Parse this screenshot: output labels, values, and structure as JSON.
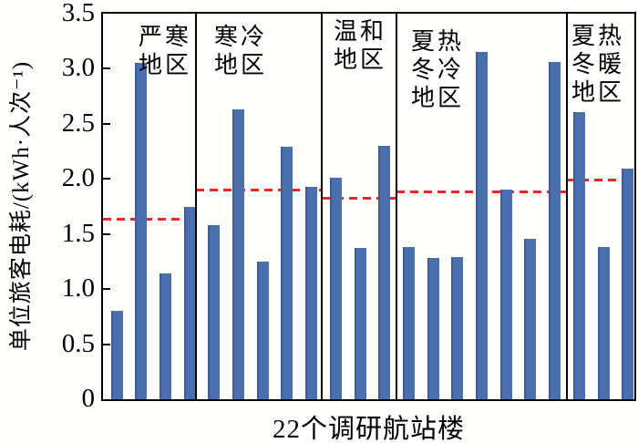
{
  "chart_data": {
    "type": "bar",
    "title": "",
    "xlabel": "22个调研航站楼",
    "ylabel": "单位旅客电耗/(kWh·人次⁻¹)",
    "ylim": [
      0,
      3.5
    ],
    "grid": false,
    "legend": "none",
    "yticks": [
      {
        "value": 0,
        "label": "0"
      },
      {
        "value": 0.5,
        "label": "0.5"
      },
      {
        "value": 1.0,
        "label": "1.0"
      },
      {
        "value": 1.5,
        "label": "1.5"
      },
      {
        "value": 2.0,
        "label": "2.0"
      },
      {
        "value": 2.5,
        "label": "2.5"
      },
      {
        "value": 3.0,
        "label": "3.0"
      },
      {
        "value": 3.5,
        "label": "3.5"
      }
    ],
    "colors": {
      "bar": "#4b6fad",
      "bar_edge": "#3c5d99",
      "average_line": "#ee2624",
      "axis": "#000000",
      "background": "#fffffe"
    },
    "bar_count_total": 22,
    "groups": [
      {
        "label": "严寒地区",
        "label_lines": [
          "严寒",
          "地区"
        ],
        "values": [
          0.8,
          3.05,
          1.14,
          1.75
        ],
        "average_line": 1.64
      },
      {
        "label": "寒冷地区",
        "label_lines": [
          "寒冷",
          "地区"
        ],
        "values": [
          1.58,
          2.63,
          1.25,
          2.29,
          1.93
        ],
        "average_line": 1.9
      },
      {
        "label": "温和地区",
        "label_lines": [
          "温和",
          "地区"
        ],
        "values": [
          2.01,
          1.37,
          2.3
        ],
        "average_line": 1.83
      },
      {
        "label": "夏热冬冷地区",
        "label_lines": [
          "夏热",
          "冬冷",
          "地区"
        ],
        "values": [
          1.38,
          1.28,
          1.29,
          3.15,
          1.9,
          1.46,
          3.06
        ],
        "average_line": 1.89
      },
      {
        "label": "夏热冬暖地区",
        "label_lines": [
          "夏热",
          "冬暖",
          "地区"
        ],
        "values": [
          2.61,
          1.38,
          2.09
        ],
        "average_line": 1.99
      }
    ]
  }
}
